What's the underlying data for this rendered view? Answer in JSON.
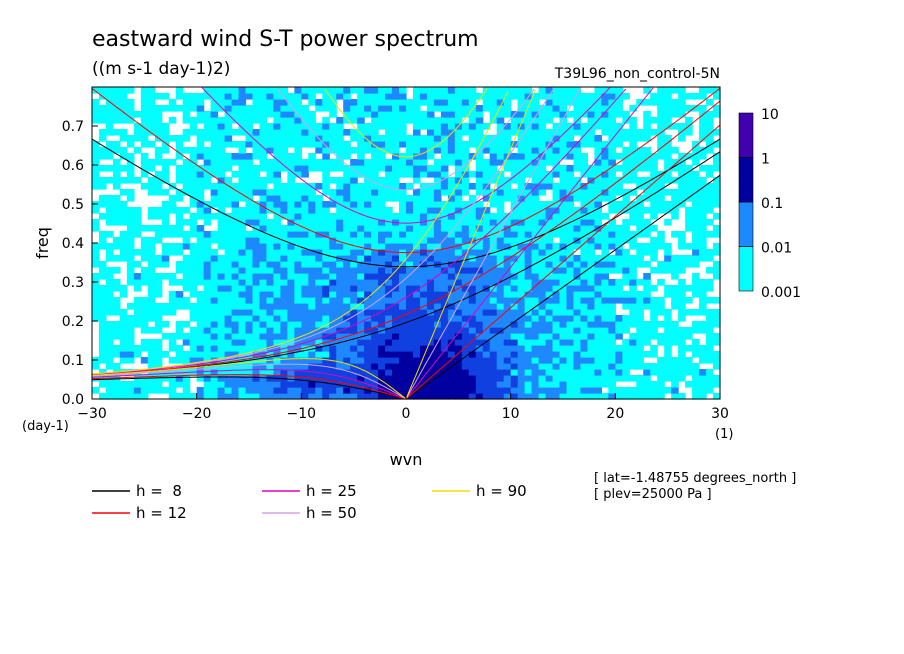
{
  "chart_data": {
    "type": "heatmap",
    "title": "eastward wind S-T power spectrum",
    "subtitle": "((m s-1 day-1)2)",
    "run_label": "T39L96_non_control-5N",
    "xlabel": "wvn",
    "ylabel": "freq",
    "x_unit": "(1)",
    "y_unit": "(day-1)",
    "xlim": [
      -30,
      30
    ],
    "ylim": [
      0,
      0.8
    ],
    "x_ticks": [
      -30,
      -20,
      -10,
      0,
      10,
      20,
      30
    ],
    "y_ticks": [
      0.0,
      0.1,
      0.2,
      0.3,
      0.4,
      0.5,
      0.6,
      0.7
    ],
    "colorbar": {
      "labels": [
        "10",
        "1",
        "0.1",
        "0.01",
        "0.001"
      ],
      "levels": [
        0.001,
        0.01,
        0.1,
        1,
        10
      ],
      "colors": [
        "#00ffff",
        "#1e88ff",
        "#1040e0",
        "#0000a0",
        "#4000b0"
      ]
    },
    "legend": [
      {
        "label": "h =  8",
        "h": 8,
        "color": "#000000"
      },
      {
        "label": "h = 12",
        "h": 12,
        "color": "#ff0000"
      },
      {
        "label": "h = 25",
        "h": 25,
        "color": "#e000c0"
      },
      {
        "label": "h = 50",
        "h": 50,
        "color": "#d8a0e8"
      },
      {
        "label": "h = 90",
        "h": 90,
        "color": "#f0e000"
      }
    ],
    "annotations": [
      "[ lat=-1.48755 degrees_north ]",
      "[ plev=25000 Pa ]"
    ]
  }
}
